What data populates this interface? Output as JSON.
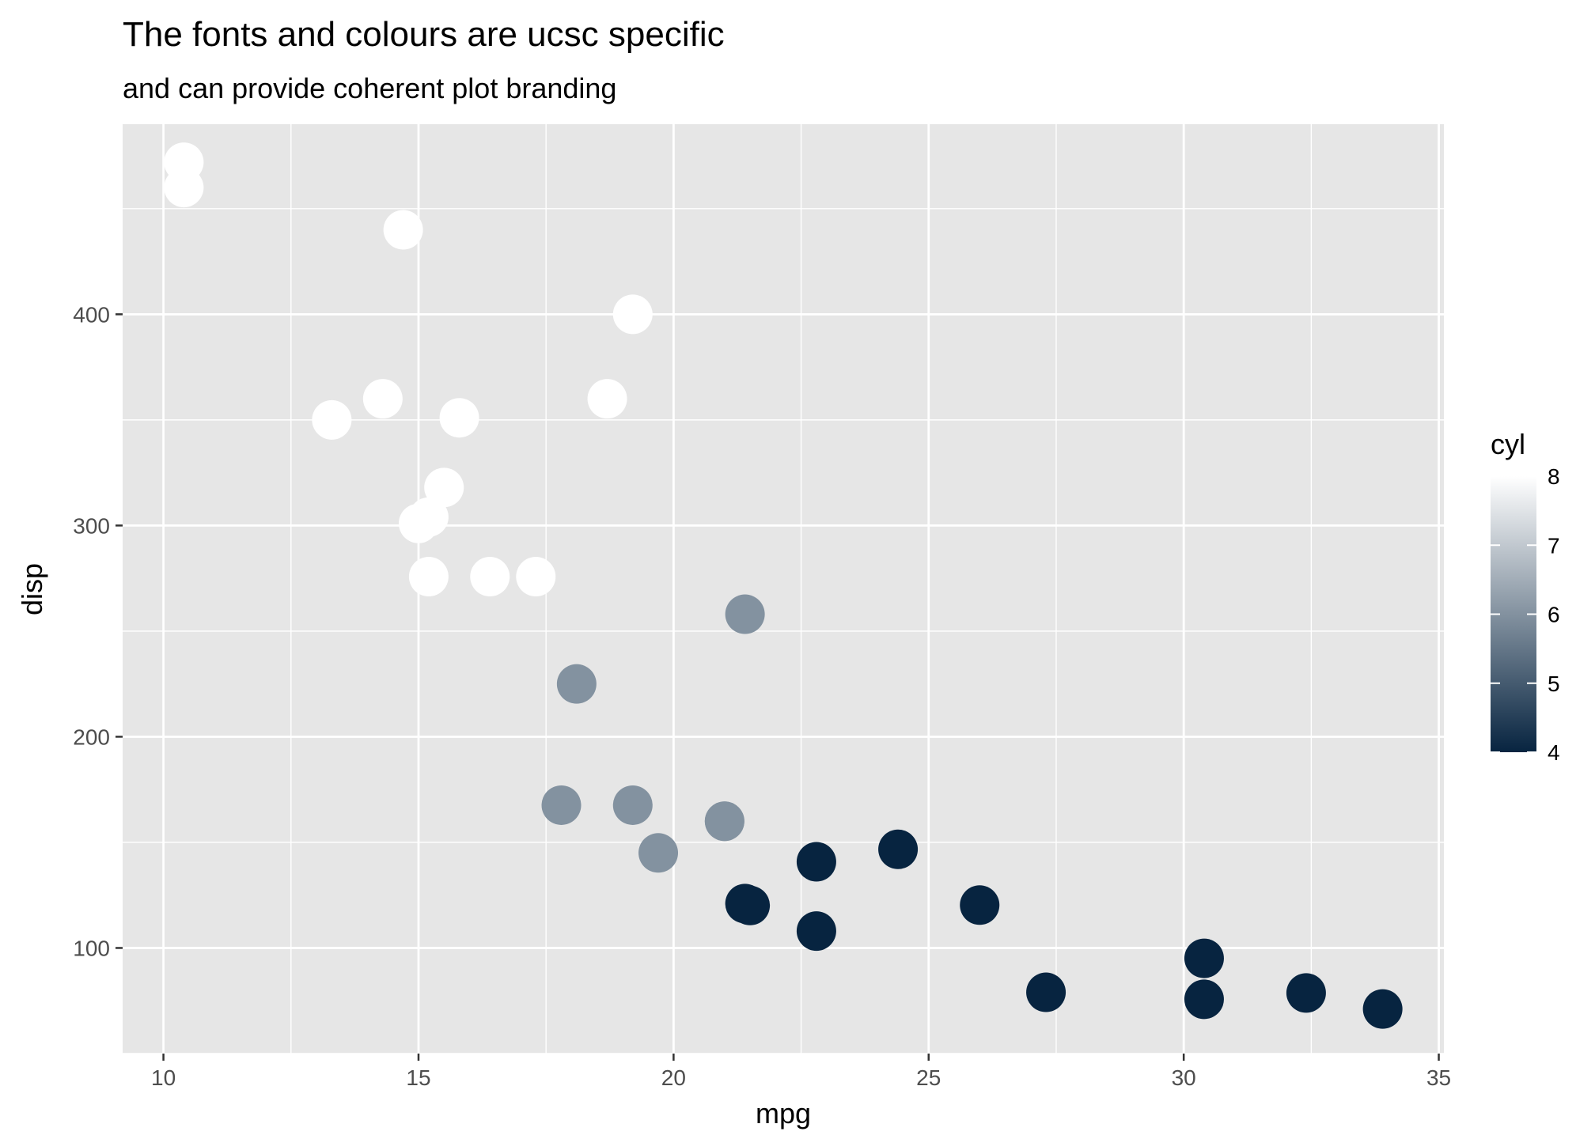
{
  "chart_data": {
    "type": "scatter",
    "title": "The fonts and colours are ucsc specific",
    "subtitle": "and can provide coherent plot branding",
    "xlabel": "mpg",
    "ylabel": "disp",
    "xlim": [
      9.2,
      35.1
    ],
    "ylim": [
      50,
      490
    ],
    "x_ticks": [
      10,
      15,
      20,
      25,
      30,
      35
    ],
    "y_ticks": [
      100,
      200,
      300,
      400
    ],
    "grid": true,
    "legend": {
      "title": "cyl",
      "placement": "right",
      "min": 4,
      "max": 8,
      "ticks": [
        4,
        5,
        6,
        7,
        8
      ],
      "low_color": "#072440",
      "high_color": "#ffffff"
    },
    "panel_background": "#e6e6e6",
    "points": [
      {
        "x": 21.0,
        "y": 160,
        "cyl": 6
      },
      {
        "x": 21.0,
        "y": 160,
        "cyl": 6
      },
      {
        "x": 22.8,
        "y": 108,
        "cyl": 4
      },
      {
        "x": 21.4,
        "y": 258,
        "cyl": 6
      },
      {
        "x": 18.7,
        "y": 360,
        "cyl": 8
      },
      {
        "x": 18.1,
        "y": 225,
        "cyl": 6
      },
      {
        "x": 14.3,
        "y": 360,
        "cyl": 8
      },
      {
        "x": 24.4,
        "y": 146.7,
        "cyl": 4
      },
      {
        "x": 22.8,
        "y": 140.8,
        "cyl": 4
      },
      {
        "x": 19.2,
        "y": 167.6,
        "cyl": 6
      },
      {
        "x": 17.8,
        "y": 167.6,
        "cyl": 6
      },
      {
        "x": 16.4,
        "y": 275.8,
        "cyl": 8
      },
      {
        "x": 17.3,
        "y": 275.8,
        "cyl": 8
      },
      {
        "x": 15.2,
        "y": 275.8,
        "cyl": 8
      },
      {
        "x": 10.4,
        "y": 472,
        "cyl": 8
      },
      {
        "x": 10.4,
        "y": 460,
        "cyl": 8
      },
      {
        "x": 14.7,
        "y": 440,
        "cyl": 8
      },
      {
        "x": 32.4,
        "y": 78.7,
        "cyl": 4
      },
      {
        "x": 30.4,
        "y": 75.7,
        "cyl": 4
      },
      {
        "x": 33.9,
        "y": 71.1,
        "cyl": 4
      },
      {
        "x": 21.5,
        "y": 120.1,
        "cyl": 4
      },
      {
        "x": 15.5,
        "y": 318,
        "cyl": 8
      },
      {
        "x": 15.2,
        "y": 304,
        "cyl": 8
      },
      {
        "x": 13.3,
        "y": 350,
        "cyl": 8
      },
      {
        "x": 19.2,
        "y": 400,
        "cyl": 8
      },
      {
        "x": 27.3,
        "y": 79,
        "cyl": 4
      },
      {
        "x": 26.0,
        "y": 120.3,
        "cyl": 4
      },
      {
        "x": 30.4,
        "y": 95.1,
        "cyl": 4
      },
      {
        "x": 15.8,
        "y": 351,
        "cyl": 8
      },
      {
        "x": 19.7,
        "y": 145,
        "cyl": 6
      },
      {
        "x": 15.0,
        "y": 301,
        "cyl": 8
      },
      {
        "x": 21.4,
        "y": 121,
        "cyl": 4
      }
    ]
  }
}
